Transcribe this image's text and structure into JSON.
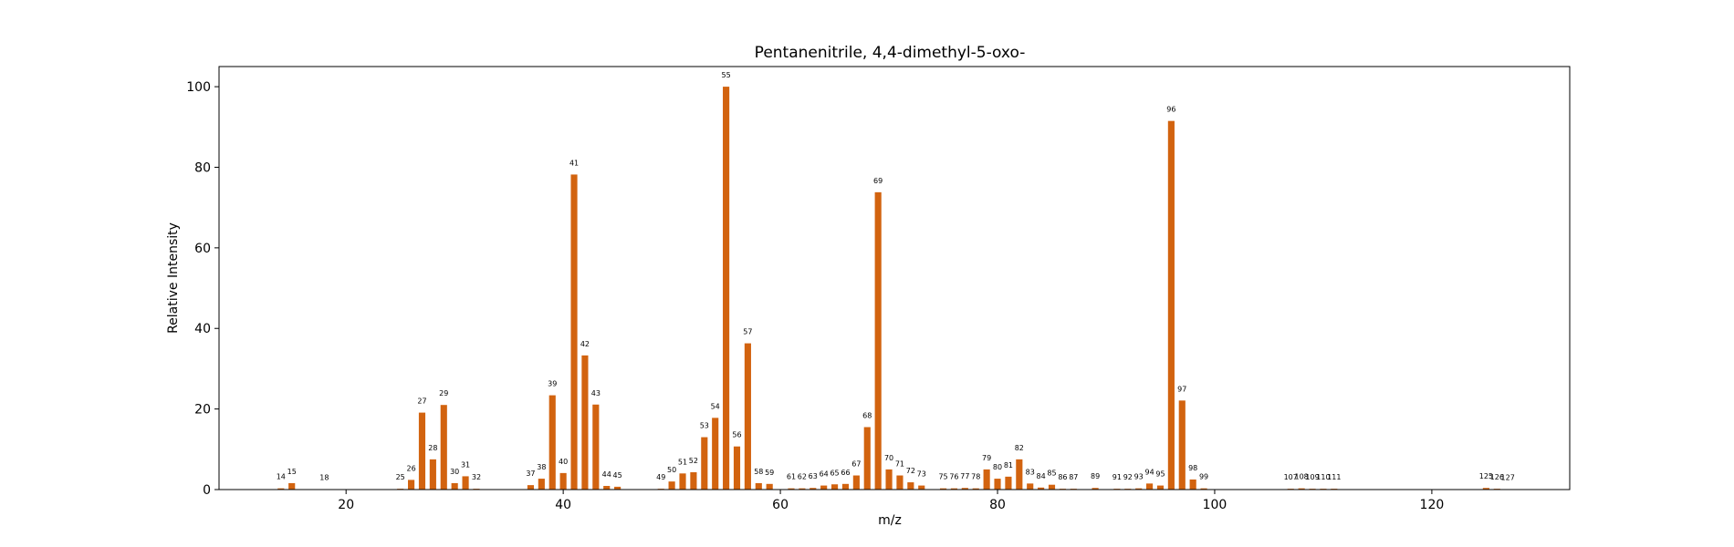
{
  "chart_data": {
    "type": "bar",
    "title": "Pentanenitrile, 4,4-dimethyl-5-oxo-",
    "xlabel": "m/z",
    "ylabel": "Relative Intensity",
    "xlim": [
      8.3,
      132.7
    ],
    "ylim": [
      0,
      105
    ],
    "xticks": [
      20,
      40,
      60,
      80,
      100,
      120
    ],
    "yticks": [
      0,
      20,
      40,
      60,
      80,
      100
    ],
    "grid": false,
    "bar_color": "#d2630f",
    "x": [
      14,
      15,
      18,
      25,
      26,
      27,
      28,
      29,
      30,
      31,
      32,
      37,
      38,
      39,
      40,
      41,
      42,
      43,
      44,
      45,
      49,
      50,
      51,
      52,
      53,
      54,
      55,
      56,
      57,
      58,
      59,
      61,
      62,
      63,
      64,
      65,
      66,
      67,
      68,
      69,
      70,
      71,
      72,
      73,
      75,
      76,
      77,
      78,
      79,
      80,
      81,
      82,
      83,
      84,
      85,
      86,
      87,
      89,
      91,
      92,
      93,
      94,
      95,
      96,
      97,
      98,
      99,
      107,
      108,
      109,
      110,
      111,
      125,
      126,
      127
    ],
    "values": [
      0.3,
      1.6,
      0.1,
      0.2,
      2.4,
      19.1,
      7.5,
      21.0,
      1.6,
      3.3,
      0.2,
      1.1,
      2.7,
      23.4,
      4.1,
      78.2,
      33.3,
      21.1,
      0.9,
      0.7,
      0.2,
      2.0,
      4.0,
      4.3,
      13.0,
      17.8,
      100.0,
      10.7,
      36.3,
      1.6,
      1.4,
      0.3,
      0.3,
      0.4,
      1.0,
      1.3,
      1.4,
      3.5,
      15.5,
      73.8,
      5.0,
      3.5,
      1.8,
      1.0,
      0.3,
      0.3,
      0.4,
      0.3,
      5.0,
      2.7,
      3.2,
      7.5,
      1.5,
      0.5,
      1.2,
      0.2,
      0.2,
      0.4,
      0.2,
      0.2,
      0.3,
      1.5,
      1.0,
      91.5,
      22.1,
      2.5,
      0.3,
      0.2,
      0.3,
      0.2,
      0.2,
      0.2,
      0.4,
      0.2,
      0.1
    ]
  }
}
